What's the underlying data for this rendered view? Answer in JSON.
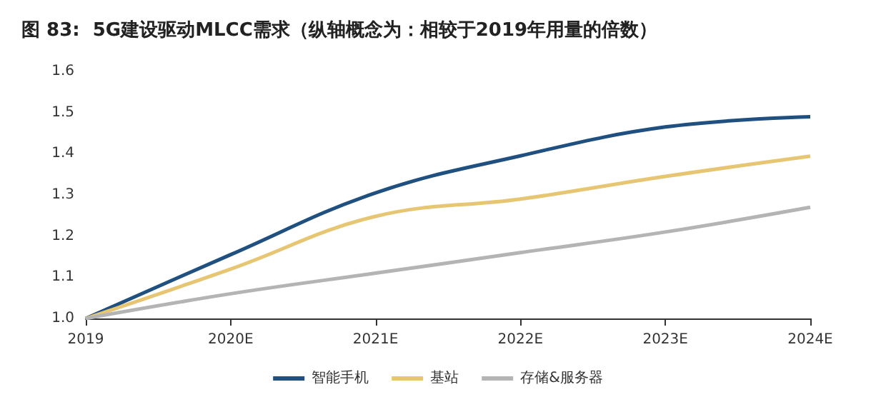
{
  "chart_data": {
    "type": "line",
    "title": "图 83:  5G建设驱动MLCC需求（纵轴概念为：相较于2019年用量的倍数）",
    "categories": [
      "2019",
      "2020E",
      "2021E",
      "2022E",
      "2023E",
      "2024E"
    ],
    "series": [
      {
        "name": "智能手机",
        "color": "#1f5080",
        "values": [
          1.0,
          1.155,
          1.305,
          1.395,
          1.465,
          1.49
        ]
      },
      {
        "name": "基站",
        "color": "#e6c673",
        "values": [
          1.0,
          1.12,
          1.248,
          1.29,
          1.345,
          1.394
        ]
      },
      {
        "name": "存储&服务器",
        "color": "#b4b4b4",
        "values": [
          1.0,
          1.06,
          1.11,
          1.16,
          1.21,
          1.27
        ]
      }
    ],
    "ylim": [
      1.0,
      1.6
    ],
    "yticks": [
      {
        "value": 1.0,
        "label": "1.0"
      },
      1.1,
      1.2,
      1.3,
      1.4,
      1.5,
      1.6
    ],
    "grid": false,
    "legend": "bottom",
    "marker": "none",
    "line_style": "solid"
  }
}
